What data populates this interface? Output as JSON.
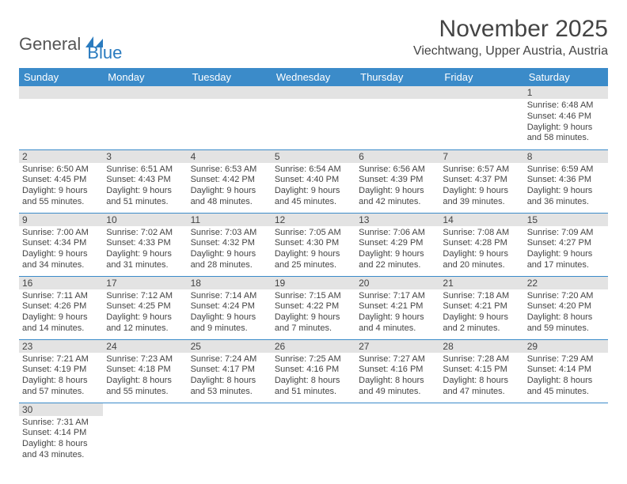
{
  "logo": {
    "part1": "General",
    "part2": "Blue"
  },
  "title": "November 2025",
  "location": "Viechtwang, Upper Austria, Austria",
  "colors": {
    "header_bg": "#3b8bc9",
    "header_text": "#ffffff",
    "daynum_bg": "#e3e3e3",
    "row_border": "#3b8bc9",
    "logo_gray": "#555555",
    "logo_blue": "#2a7bbf"
  },
  "day_headers": [
    "Sunday",
    "Monday",
    "Tuesday",
    "Wednesday",
    "Thursday",
    "Friday",
    "Saturday"
  ],
  "weeks": [
    [
      null,
      null,
      null,
      null,
      null,
      null,
      {
        "n": "1",
        "sr": "Sunrise: 6:48 AM",
        "ss": "Sunset: 4:46 PM",
        "dl1": "Daylight: 9 hours",
        "dl2": "and 58 minutes."
      }
    ],
    [
      {
        "n": "2",
        "sr": "Sunrise: 6:50 AM",
        "ss": "Sunset: 4:45 PM",
        "dl1": "Daylight: 9 hours",
        "dl2": "and 55 minutes."
      },
      {
        "n": "3",
        "sr": "Sunrise: 6:51 AM",
        "ss": "Sunset: 4:43 PM",
        "dl1": "Daylight: 9 hours",
        "dl2": "and 51 minutes."
      },
      {
        "n": "4",
        "sr": "Sunrise: 6:53 AM",
        "ss": "Sunset: 4:42 PM",
        "dl1": "Daylight: 9 hours",
        "dl2": "and 48 minutes."
      },
      {
        "n": "5",
        "sr": "Sunrise: 6:54 AM",
        "ss": "Sunset: 4:40 PM",
        "dl1": "Daylight: 9 hours",
        "dl2": "and 45 minutes."
      },
      {
        "n": "6",
        "sr": "Sunrise: 6:56 AM",
        "ss": "Sunset: 4:39 PM",
        "dl1": "Daylight: 9 hours",
        "dl2": "and 42 minutes."
      },
      {
        "n": "7",
        "sr": "Sunrise: 6:57 AM",
        "ss": "Sunset: 4:37 PM",
        "dl1": "Daylight: 9 hours",
        "dl2": "and 39 minutes."
      },
      {
        "n": "8",
        "sr": "Sunrise: 6:59 AM",
        "ss": "Sunset: 4:36 PM",
        "dl1": "Daylight: 9 hours",
        "dl2": "and 36 minutes."
      }
    ],
    [
      {
        "n": "9",
        "sr": "Sunrise: 7:00 AM",
        "ss": "Sunset: 4:34 PM",
        "dl1": "Daylight: 9 hours",
        "dl2": "and 34 minutes."
      },
      {
        "n": "10",
        "sr": "Sunrise: 7:02 AM",
        "ss": "Sunset: 4:33 PM",
        "dl1": "Daylight: 9 hours",
        "dl2": "and 31 minutes."
      },
      {
        "n": "11",
        "sr": "Sunrise: 7:03 AM",
        "ss": "Sunset: 4:32 PM",
        "dl1": "Daylight: 9 hours",
        "dl2": "and 28 minutes."
      },
      {
        "n": "12",
        "sr": "Sunrise: 7:05 AM",
        "ss": "Sunset: 4:30 PM",
        "dl1": "Daylight: 9 hours",
        "dl2": "and 25 minutes."
      },
      {
        "n": "13",
        "sr": "Sunrise: 7:06 AM",
        "ss": "Sunset: 4:29 PM",
        "dl1": "Daylight: 9 hours",
        "dl2": "and 22 minutes."
      },
      {
        "n": "14",
        "sr": "Sunrise: 7:08 AM",
        "ss": "Sunset: 4:28 PM",
        "dl1": "Daylight: 9 hours",
        "dl2": "and 20 minutes."
      },
      {
        "n": "15",
        "sr": "Sunrise: 7:09 AM",
        "ss": "Sunset: 4:27 PM",
        "dl1": "Daylight: 9 hours",
        "dl2": "and 17 minutes."
      }
    ],
    [
      {
        "n": "16",
        "sr": "Sunrise: 7:11 AM",
        "ss": "Sunset: 4:26 PM",
        "dl1": "Daylight: 9 hours",
        "dl2": "and 14 minutes."
      },
      {
        "n": "17",
        "sr": "Sunrise: 7:12 AM",
        "ss": "Sunset: 4:25 PM",
        "dl1": "Daylight: 9 hours",
        "dl2": "and 12 minutes."
      },
      {
        "n": "18",
        "sr": "Sunrise: 7:14 AM",
        "ss": "Sunset: 4:24 PM",
        "dl1": "Daylight: 9 hours",
        "dl2": "and 9 minutes."
      },
      {
        "n": "19",
        "sr": "Sunrise: 7:15 AM",
        "ss": "Sunset: 4:22 PM",
        "dl1": "Daylight: 9 hours",
        "dl2": "and 7 minutes."
      },
      {
        "n": "20",
        "sr": "Sunrise: 7:17 AM",
        "ss": "Sunset: 4:21 PM",
        "dl1": "Daylight: 9 hours",
        "dl2": "and 4 minutes."
      },
      {
        "n": "21",
        "sr": "Sunrise: 7:18 AM",
        "ss": "Sunset: 4:21 PM",
        "dl1": "Daylight: 9 hours",
        "dl2": "and 2 minutes."
      },
      {
        "n": "22",
        "sr": "Sunrise: 7:20 AM",
        "ss": "Sunset: 4:20 PM",
        "dl1": "Daylight: 8 hours",
        "dl2": "and 59 minutes."
      }
    ],
    [
      {
        "n": "23",
        "sr": "Sunrise: 7:21 AM",
        "ss": "Sunset: 4:19 PM",
        "dl1": "Daylight: 8 hours",
        "dl2": "and 57 minutes."
      },
      {
        "n": "24",
        "sr": "Sunrise: 7:23 AM",
        "ss": "Sunset: 4:18 PM",
        "dl1": "Daylight: 8 hours",
        "dl2": "and 55 minutes."
      },
      {
        "n": "25",
        "sr": "Sunrise: 7:24 AM",
        "ss": "Sunset: 4:17 PM",
        "dl1": "Daylight: 8 hours",
        "dl2": "and 53 minutes."
      },
      {
        "n": "26",
        "sr": "Sunrise: 7:25 AM",
        "ss": "Sunset: 4:16 PM",
        "dl1": "Daylight: 8 hours",
        "dl2": "and 51 minutes."
      },
      {
        "n": "27",
        "sr": "Sunrise: 7:27 AM",
        "ss": "Sunset: 4:16 PM",
        "dl1": "Daylight: 8 hours",
        "dl2": "and 49 minutes."
      },
      {
        "n": "28",
        "sr": "Sunrise: 7:28 AM",
        "ss": "Sunset: 4:15 PM",
        "dl1": "Daylight: 8 hours",
        "dl2": "and 47 minutes."
      },
      {
        "n": "29",
        "sr": "Sunrise: 7:29 AM",
        "ss": "Sunset: 4:14 PM",
        "dl1": "Daylight: 8 hours",
        "dl2": "and 45 minutes."
      }
    ],
    [
      {
        "n": "30",
        "sr": "Sunrise: 7:31 AM",
        "ss": "Sunset: 4:14 PM",
        "dl1": "Daylight: 8 hours",
        "dl2": "and 43 minutes."
      },
      null,
      null,
      null,
      null,
      null,
      null
    ]
  ]
}
